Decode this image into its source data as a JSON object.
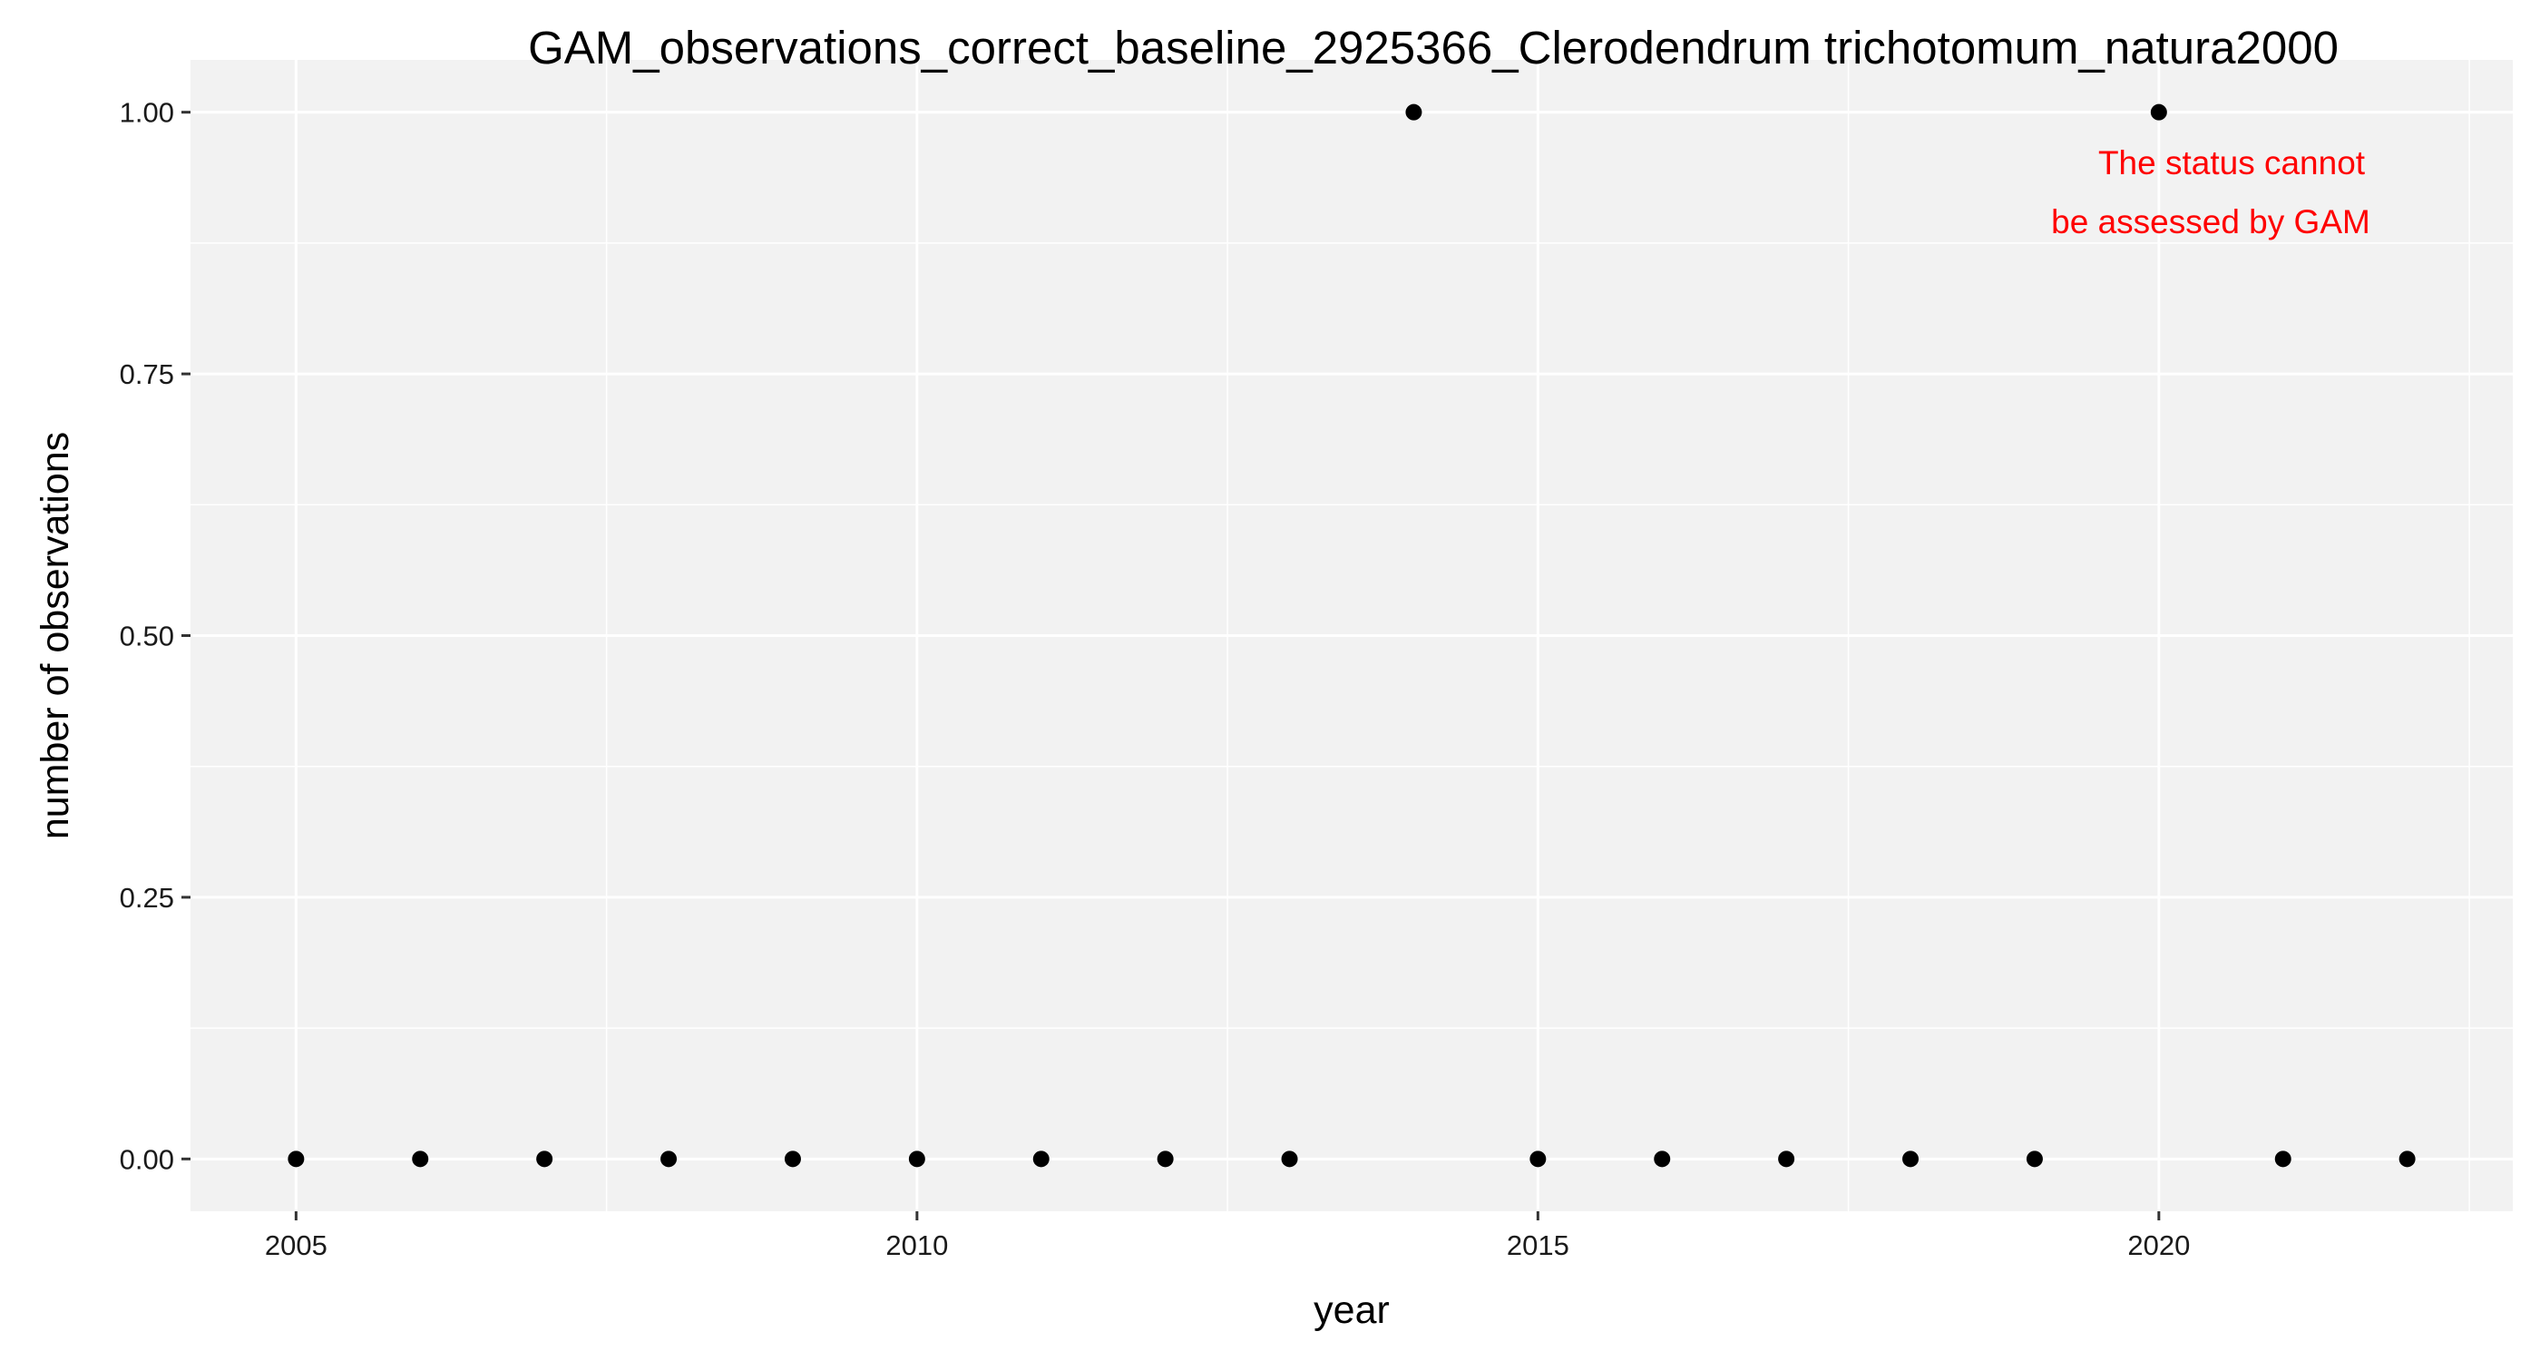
{
  "chart_data": {
    "type": "scatter",
    "title": "GAM_observations_correct_baseline_2925366_Clerodendrum trichotomum_natura2000",
    "xlabel": "year",
    "ylabel": "number of observations",
    "x_ticks": [
      "2005",
      "2010",
      "2015",
      "2020"
    ],
    "y_ticks": [
      "0.00",
      "0.25",
      "0.50",
      "0.75",
      "1.00"
    ],
    "xlim": [
      2004.15,
      2022.85
    ],
    "ylim": [
      -0.05,
      1.05
    ],
    "grid": true,
    "points": [
      {
        "x": 2005,
        "y": 0
      },
      {
        "x": 2006,
        "y": 0
      },
      {
        "x": 2007,
        "y": 0
      },
      {
        "x": 2008,
        "y": 0
      },
      {
        "x": 2009,
        "y": 0
      },
      {
        "x": 2010,
        "y": 0
      },
      {
        "x": 2011,
        "y": 0
      },
      {
        "x": 2012,
        "y": 0
      },
      {
        "x": 2013,
        "y": 0
      },
      {
        "x": 2014,
        "y": 1
      },
      {
        "x": 2015,
        "y": 0
      },
      {
        "x": 2016,
        "y": 0
      },
      {
        "x": 2017,
        "y": 0
      },
      {
        "x": 2018,
        "y": 0
      },
      {
        "x": 2019,
        "y": 0
      },
      {
        "x": 2020,
        "y": 1
      },
      {
        "x": 2021,
        "y": 0
      },
      {
        "x": 2022,
        "y": 0
      }
    ],
    "annotation": {
      "lines": [
        "The status cannot",
        "be assessed by GAM"
      ],
      "color": "#ff0000"
    },
    "colors": {
      "panel": "#f2f2f2",
      "grid": "#ffffff",
      "point": "#000000"
    }
  }
}
